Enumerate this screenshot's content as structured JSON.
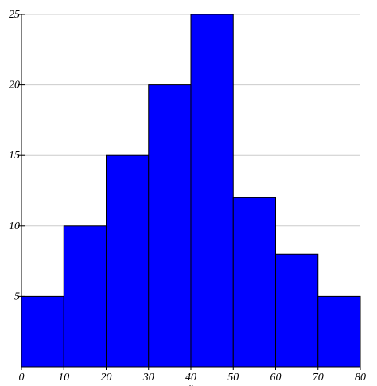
{
  "chart_data": {
    "type": "bar",
    "title": "",
    "xlabel": "r",
    "ylabel": "",
    "bins": [
      {
        "x0": 0,
        "x1": 10,
        "value": 5
      },
      {
        "x0": 10,
        "x1": 20,
        "value": 10
      },
      {
        "x0": 20,
        "x1": 30,
        "value": 15
      },
      {
        "x0": 30,
        "x1": 40,
        "value": 20
      },
      {
        "x0": 40,
        "x1": 50,
        "value": 25
      },
      {
        "x0": 50,
        "x1": 60,
        "value": 12
      },
      {
        "x0": 60,
        "x1": 70,
        "value": 8
      },
      {
        "x0": 70,
        "x1": 80,
        "value": 5
      }
    ],
    "xlim": [
      0,
      80
    ],
    "ylim": [
      0,
      25
    ],
    "x_ticks": [
      "0",
      "10",
      "20",
      "30",
      "40",
      "50",
      "60",
      "70",
      "80"
    ],
    "y_ticks": [
      "5",
      "10",
      "15",
      "20",
      "25"
    ],
    "grid": "horizontal",
    "legend": "none",
    "colors": {
      "bar_fill": "#0000ff",
      "bar_stroke": "#000000",
      "grid": "#cccccc",
      "axis": "#000000"
    }
  }
}
